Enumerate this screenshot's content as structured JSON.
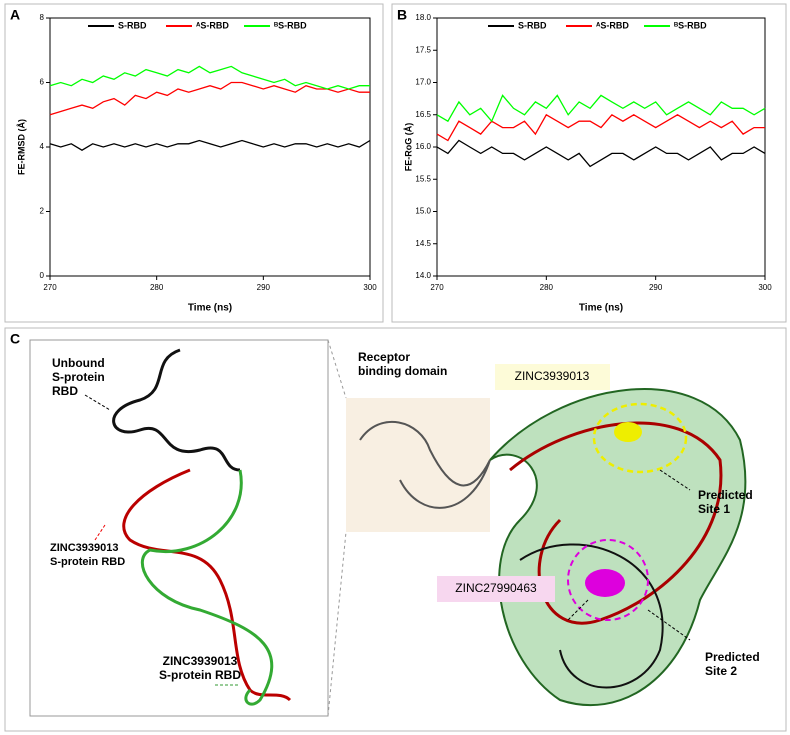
{
  "chart_data": [
    {
      "type": "line",
      "panel": "A",
      "x_label": "Time (ns)",
      "y_label": "FE-RMSD (Å)",
      "x": [
        270,
        271,
        272,
        273,
        274,
        275,
        276,
        277,
        278,
        279,
        280,
        281,
        282,
        283,
        284,
        285,
        286,
        287,
        288,
        289,
        290,
        291,
        292,
        293,
        294,
        295,
        296,
        297,
        298,
        299,
        300
      ],
      "xlim": [
        270,
        300
      ],
      "xticks": [
        270,
        280,
        290,
        300
      ],
      "ylim": [
        0,
        8
      ],
      "yticks": [
        0,
        2,
        4,
        6,
        8
      ],
      "series": [
        {
          "name": "S-RBD",
          "color": "#000000",
          "values": [
            4.1,
            4.0,
            4.1,
            3.9,
            4.1,
            4.0,
            4.1,
            4.0,
            4.1,
            4.0,
            4.1,
            4.0,
            4.1,
            4.1,
            4.2,
            4.1,
            4.0,
            4.1,
            4.2,
            4.1,
            4.0,
            4.1,
            4.0,
            4.1,
            4.1,
            4.0,
            4.1,
            4.0,
            4.1,
            4.0,
            4.2
          ]
        },
        {
          "name": "ᴬS-RBD",
          "color": "#ff0000",
          "values": [
            5.0,
            5.1,
            5.2,
            5.3,
            5.2,
            5.4,
            5.5,
            5.3,
            5.6,
            5.5,
            5.7,
            5.6,
            5.8,
            5.7,
            5.8,
            5.9,
            5.8,
            6.0,
            6.0,
            5.9,
            5.8,
            5.9,
            5.8,
            5.7,
            5.9,
            5.8,
            5.8,
            5.7,
            5.8,
            5.7,
            5.7
          ]
        },
        {
          "name": "ᴮS-RBD",
          "color": "#00ff00",
          "values": [
            5.9,
            6.0,
            5.9,
            6.1,
            6.0,
            6.2,
            6.1,
            6.3,
            6.2,
            6.4,
            6.3,
            6.2,
            6.4,
            6.3,
            6.5,
            6.3,
            6.4,
            6.5,
            6.3,
            6.2,
            6.1,
            6.0,
            6.1,
            5.9,
            6.0,
            5.9,
            5.8,
            5.9,
            5.8,
            5.9,
            5.9
          ]
        }
      ]
    },
    {
      "type": "line",
      "panel": "B",
      "x_label": "Time (ns)",
      "y_label": "FE-RoG (Å)",
      "x": [
        270,
        271,
        272,
        273,
        274,
        275,
        276,
        277,
        278,
        279,
        280,
        281,
        282,
        283,
        284,
        285,
        286,
        287,
        288,
        289,
        290,
        291,
        292,
        293,
        294,
        295,
        296,
        297,
        298,
        299,
        300
      ],
      "xlim": [
        270,
        300
      ],
      "xticks": [
        270,
        280,
        290,
        300
      ],
      "ylim": [
        14,
        18
      ],
      "yticks": [
        {
          "value": 14,
          "label": "14.0"
        },
        {
          "value": 14.5,
          "label": "14.5"
        },
        {
          "value": 15,
          "label": "15.0"
        },
        {
          "value": 15.5,
          "label": "15.5"
        },
        {
          "value": 16,
          "label": "16.0"
        },
        {
          "value": 16.5,
          "label": "16.5"
        },
        {
          "value": 17,
          "label": "17.0"
        },
        {
          "value": 17.5,
          "label": "17.5"
        },
        {
          "value": 18,
          "label": "18.0"
        }
      ],
      "series": [
        {
          "name": "S-RBD",
          "color": "#000000",
          "values": [
            16.0,
            15.9,
            16.1,
            16.0,
            15.9,
            16.0,
            15.9,
            15.9,
            15.8,
            15.9,
            16.0,
            15.9,
            15.8,
            15.9,
            15.7,
            15.8,
            15.9,
            15.9,
            15.8,
            15.9,
            16.0,
            15.9,
            15.9,
            15.8,
            15.9,
            16.0,
            15.8,
            15.9,
            15.9,
            16.0,
            15.9
          ]
        },
        {
          "name": "ᴬS-RBD",
          "color": "#ff0000",
          "values": [
            16.2,
            16.1,
            16.4,
            16.3,
            16.2,
            16.4,
            16.3,
            16.3,
            16.4,
            16.2,
            16.5,
            16.4,
            16.3,
            16.4,
            16.4,
            16.3,
            16.5,
            16.4,
            16.5,
            16.4,
            16.3,
            16.4,
            16.5,
            16.4,
            16.3,
            16.4,
            16.3,
            16.4,
            16.2,
            16.3,
            16.3
          ]
        },
        {
          "name": "ᴮS-RBD",
          "color": "#00ff00",
          "values": [
            16.5,
            16.4,
            16.7,
            16.5,
            16.6,
            16.4,
            16.8,
            16.6,
            16.5,
            16.7,
            16.6,
            16.8,
            16.5,
            16.7,
            16.6,
            16.8,
            16.7,
            16.6,
            16.7,
            16.6,
            16.7,
            16.5,
            16.6,
            16.7,
            16.6,
            16.5,
            16.7,
            16.6,
            16.6,
            16.5,
            16.6
          ]
        }
      ]
    }
  ],
  "panel_c": {
    "panel": "C",
    "unbound": [
      "Unbound",
      "S-protein",
      "RBD"
    ],
    "red_label": [
      "ZINC3939013",
      "S-protein RBD"
    ],
    "green_label": [
      "ZINC3939013",
      "S-protein RBD"
    ],
    "rbd": [
      "Receptor",
      "binding domain"
    ],
    "ligand1": "ZINC3939013",
    "site1": [
      "Predicted",
      "Site 1"
    ],
    "ligand2": "ZINC27990463",
    "site2": [
      "Predicted",
      "Site 2"
    ]
  }
}
